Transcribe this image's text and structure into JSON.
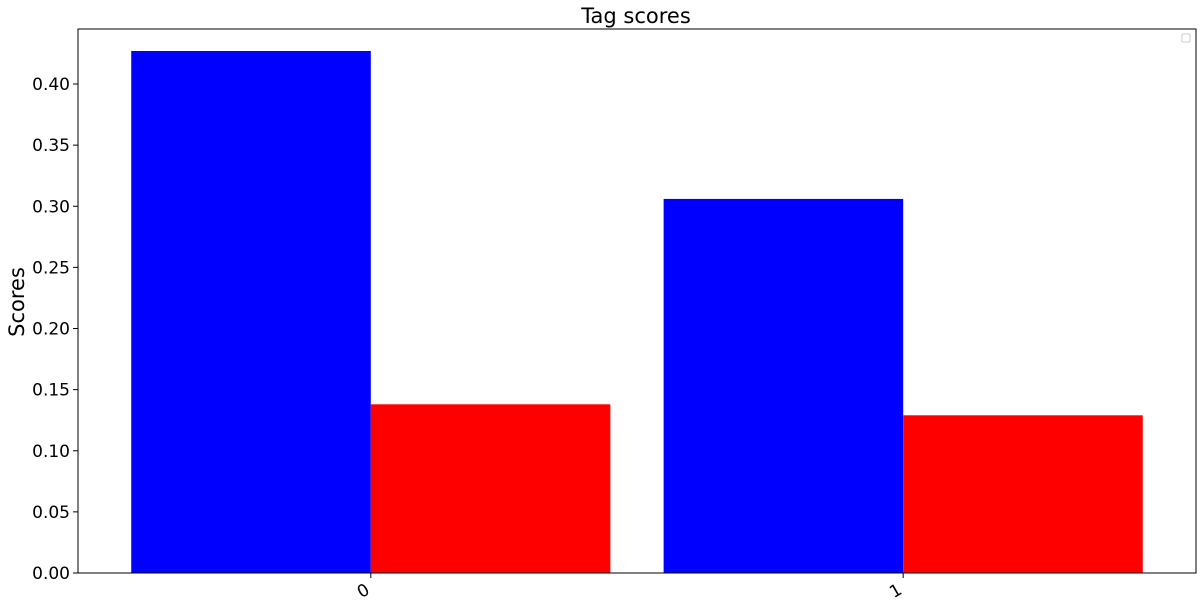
{
  "chart_data": {
    "type": "bar",
    "title": "Tag scores",
    "xlabel": "",
    "ylabel": "Scores",
    "categories": [
      "0",
      "1"
    ],
    "series": [
      {
        "color": "#0000ff",
        "values": [
          0.427,
          0.306
        ]
      },
      {
        "color": "#ff0000",
        "values": [
          0.138,
          0.129
        ]
      }
    ],
    "ylim": [
      0,
      0.445
    ],
    "yticks": [
      0.0,
      0.05,
      0.1,
      0.15,
      0.2,
      0.25,
      0.3,
      0.35,
      0.4
    ],
    "ytick_labels": [
      "0.00",
      "0.05",
      "0.10",
      "0.15",
      "0.20",
      "0.25",
      "0.30",
      "0.35",
      "0.40"
    ],
    "xtick_rotation": 30,
    "legend": {
      "location": "top-right",
      "entries": []
    },
    "grid": false
  }
}
